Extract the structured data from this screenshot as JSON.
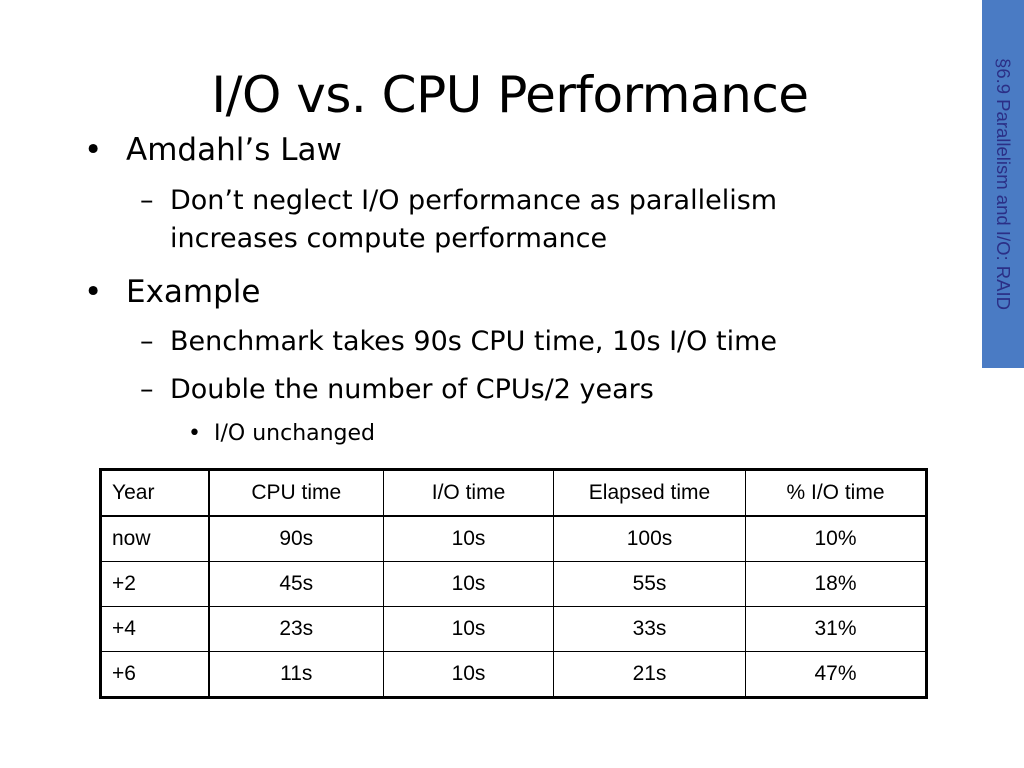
{
  "slide": {
    "title": "I/O vs. CPU Performance",
    "section_tab": "§6.9 Parallelism and I/O: RAID",
    "bullets": {
      "b1": "Amdahl’s Law",
      "b1_sub1_line1": "Don’t neglect I/O performance as parallelism",
      "b1_sub1_line2": "increases compute performance",
      "b2": "Example",
      "b2_sub1": "Benchmark takes 90s CPU time, 10s I/O time",
      "b2_sub2": "Double the number of CPUs/2 years",
      "b2_sub2_sub1": "I/O unchanged"
    },
    "markers": {
      "bullet": "•",
      "dash": "–"
    }
  },
  "table": {
    "headers": [
      "Year",
      "CPU time",
      "I/O time",
      "Elapsed time",
      "% I/O time"
    ],
    "rows": [
      [
        "now",
        "90s",
        "10s",
        "100s",
        "10%"
      ],
      [
        "+2",
        "45s",
        "10s",
        "55s",
        "18%"
      ],
      [
        "+4",
        "23s",
        "10s",
        "33s",
        "31%"
      ],
      [
        "+6",
        "11s",
        "10s",
        "21s",
        "47%"
      ]
    ]
  },
  "colors": {
    "section_tab_bg": "#4a7bc4",
    "section_tab_text": "#2b2f86",
    "text": "#000000",
    "background": "#ffffff"
  }
}
